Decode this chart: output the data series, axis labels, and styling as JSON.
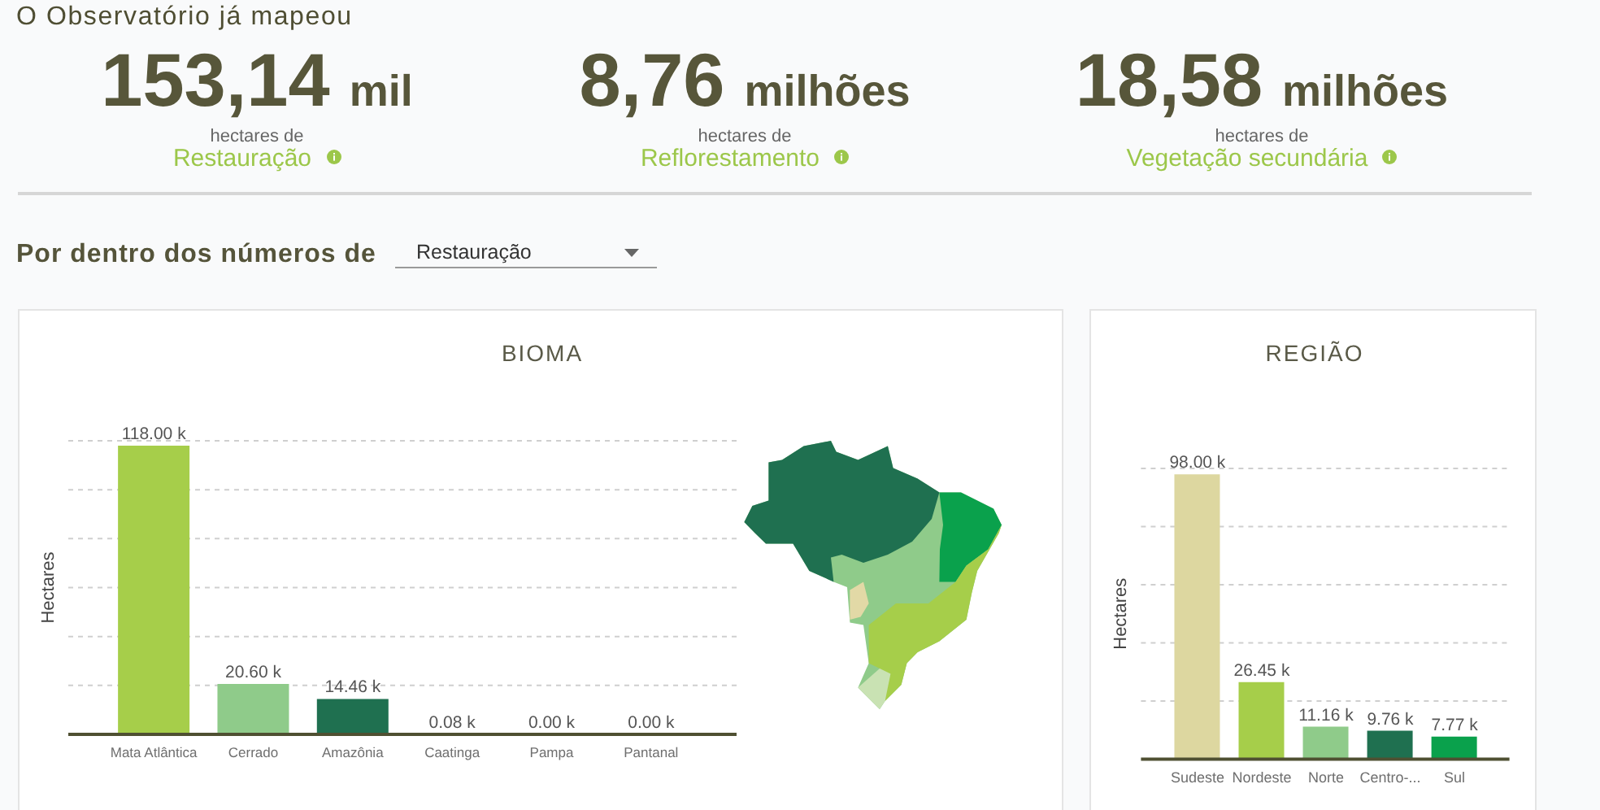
{
  "chart_data": [
    {
      "type": "other",
      "title": "O Observatório já mapeou",
      "annotations": [
        "153,14 mil",
        "hectares de",
        "Restauração",
        "8,76 milhões",
        "hectares de",
        "Reflorestamento",
        "18,58 milhões",
        "hectares de",
        "Vegetação secundária",
        "Por dentro dos números de",
        "Restauração"
      ]
    },
    {
      "type": "bar",
      "title": "BIOMA",
      "ylabel": "Hectares",
      "categories": [
        "Mata Atlântica",
        "Cerrado",
        "Amazônia",
        "Caatinga",
        "Pampa",
        "Pantanal"
      ],
      "values": [
        118,
        20.6,
        14.46,
        0.08,
        0,
        0
      ],
      "colors": [
        "#a6ce4a",
        "#8fcb8a",
        "#1f7050",
        "#1f7050",
        "#1f7050",
        "#1f7050"
      ],
      "value_labels": [
        "118.00 k",
        "20.60 k",
        "14.46 k",
        "0.08 k",
        "0.00 k",
        "0.00 k"
      ],
      "ylim": [
        0,
        120
      ],
      "yticks": [
        {
          "value": 20,
          "label": null
        },
        {
          "value": 40,
          "label": null
        },
        {
          "value": 60,
          "label": null
        },
        {
          "value": 80,
          "label": null
        },
        {
          "value": 100,
          "label": null
        },
        {
          "value": 120,
          "label": null
        }
      ],
      "grid": "y",
      "tick_labels": "x"
    },
    {
      "type": "bar",
      "title": "REGIÃO",
      "ylabel": "Hectares",
      "categories": [
        "Sudeste",
        "Nordeste",
        "Norte",
        "Centro-...",
        "Sul"
      ],
      "values": [
        98,
        26.45,
        11.16,
        9.76,
        7.77
      ],
      "colors": [
        "#ddd7a0",
        "#a6ce4a",
        "#8fcb8a",
        "#1f7050",
        "#0aa14c"
      ],
      "value_labels": [
        "98.00 k",
        "26.45 k",
        "11.16 k",
        "9.76 k",
        "7.77 k"
      ],
      "ylim": [
        0,
        100
      ],
      "yticks": [
        {
          "value": 20,
          "label": null
        },
        {
          "value": 40,
          "label": null
        },
        {
          "value": 60,
          "label": null
        },
        {
          "value": 80,
          "label": null
        },
        {
          "value": 100,
          "label": null
        }
      ],
      "grid": "y",
      "tick_labels": "x"
    }
  ]
}
